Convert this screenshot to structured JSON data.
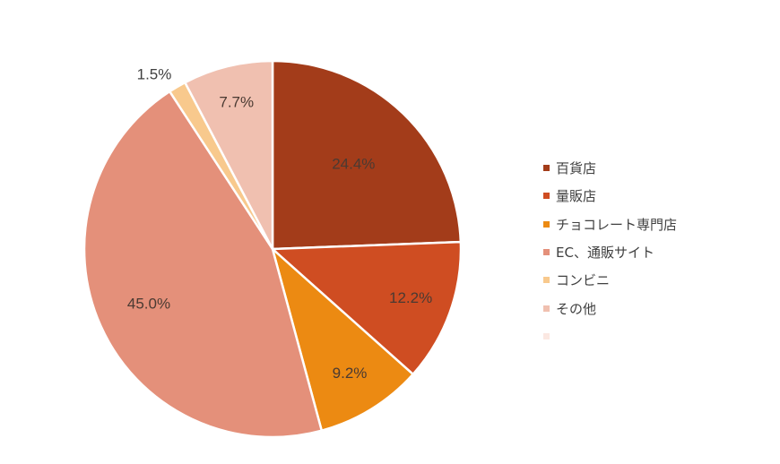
{
  "chart_data": {
    "type": "pie",
    "title": "",
    "start_angle_deg": 0,
    "direction": "clockwise",
    "categories": [
      "百貨店",
      "量販店",
      "チョコレート専門店",
      "EC、通販サイト",
      "コンビニ",
      "その他"
    ],
    "values": [
      24.4,
      12.2,
      9.2,
      45.0,
      1.5,
      7.7
    ],
    "value_labels": [
      "24.4%",
      "12.2%",
      "9.2%",
      "45.0%",
      "1.5%",
      "7.7%"
    ],
    "colors": [
      "#a33c1a",
      "#cf4d22",
      "#ec8a12",
      "#e4907a",
      "#f8c98d",
      "#f0c0b0"
    ],
    "legend_position": "right",
    "legend_extra_marker_color": "#fbe8e2"
  },
  "legend": {
    "items": [
      {
        "label": "百貨店",
        "color": "#a33c1a"
      },
      {
        "label": "量販店",
        "color": "#cf4d22"
      },
      {
        "label": "チョコレート専門店",
        "color": "#ec8a12"
      },
      {
        "label": "EC、通販サイト",
        "color": "#e4907a"
      },
      {
        "label": "コンビニ",
        "color": "#f8c98d"
      },
      {
        "label": "その他",
        "color": "#f0c0b0"
      },
      {
        "label": "",
        "color": "#fbe8e2"
      }
    ]
  }
}
